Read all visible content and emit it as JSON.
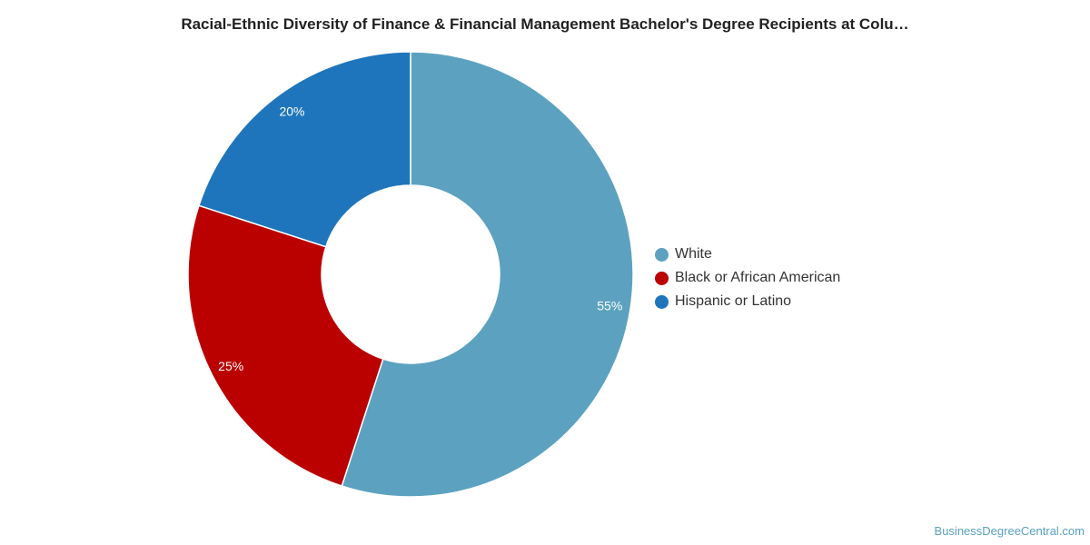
{
  "chart_data": {
    "type": "pie",
    "variant": "donut",
    "title": "Racial-Ethnic Diversity of Finance & Financial Management Bachelor's Degree Recipients at Colu…",
    "legend_position": "right",
    "slices": [
      {
        "name": "White",
        "value": 55,
        "label": "55%",
        "color": "#5ca2c0"
      },
      {
        "name": "Black or African American",
        "value": 25,
        "label": "25%",
        "color": "#bb0000"
      },
      {
        "name": "Hispanic or Latino",
        "value": 20,
        "label": "20%",
        "color": "#1f75bc"
      }
    ]
  },
  "source": {
    "text": "BusinessDegreeCentral.com"
  }
}
